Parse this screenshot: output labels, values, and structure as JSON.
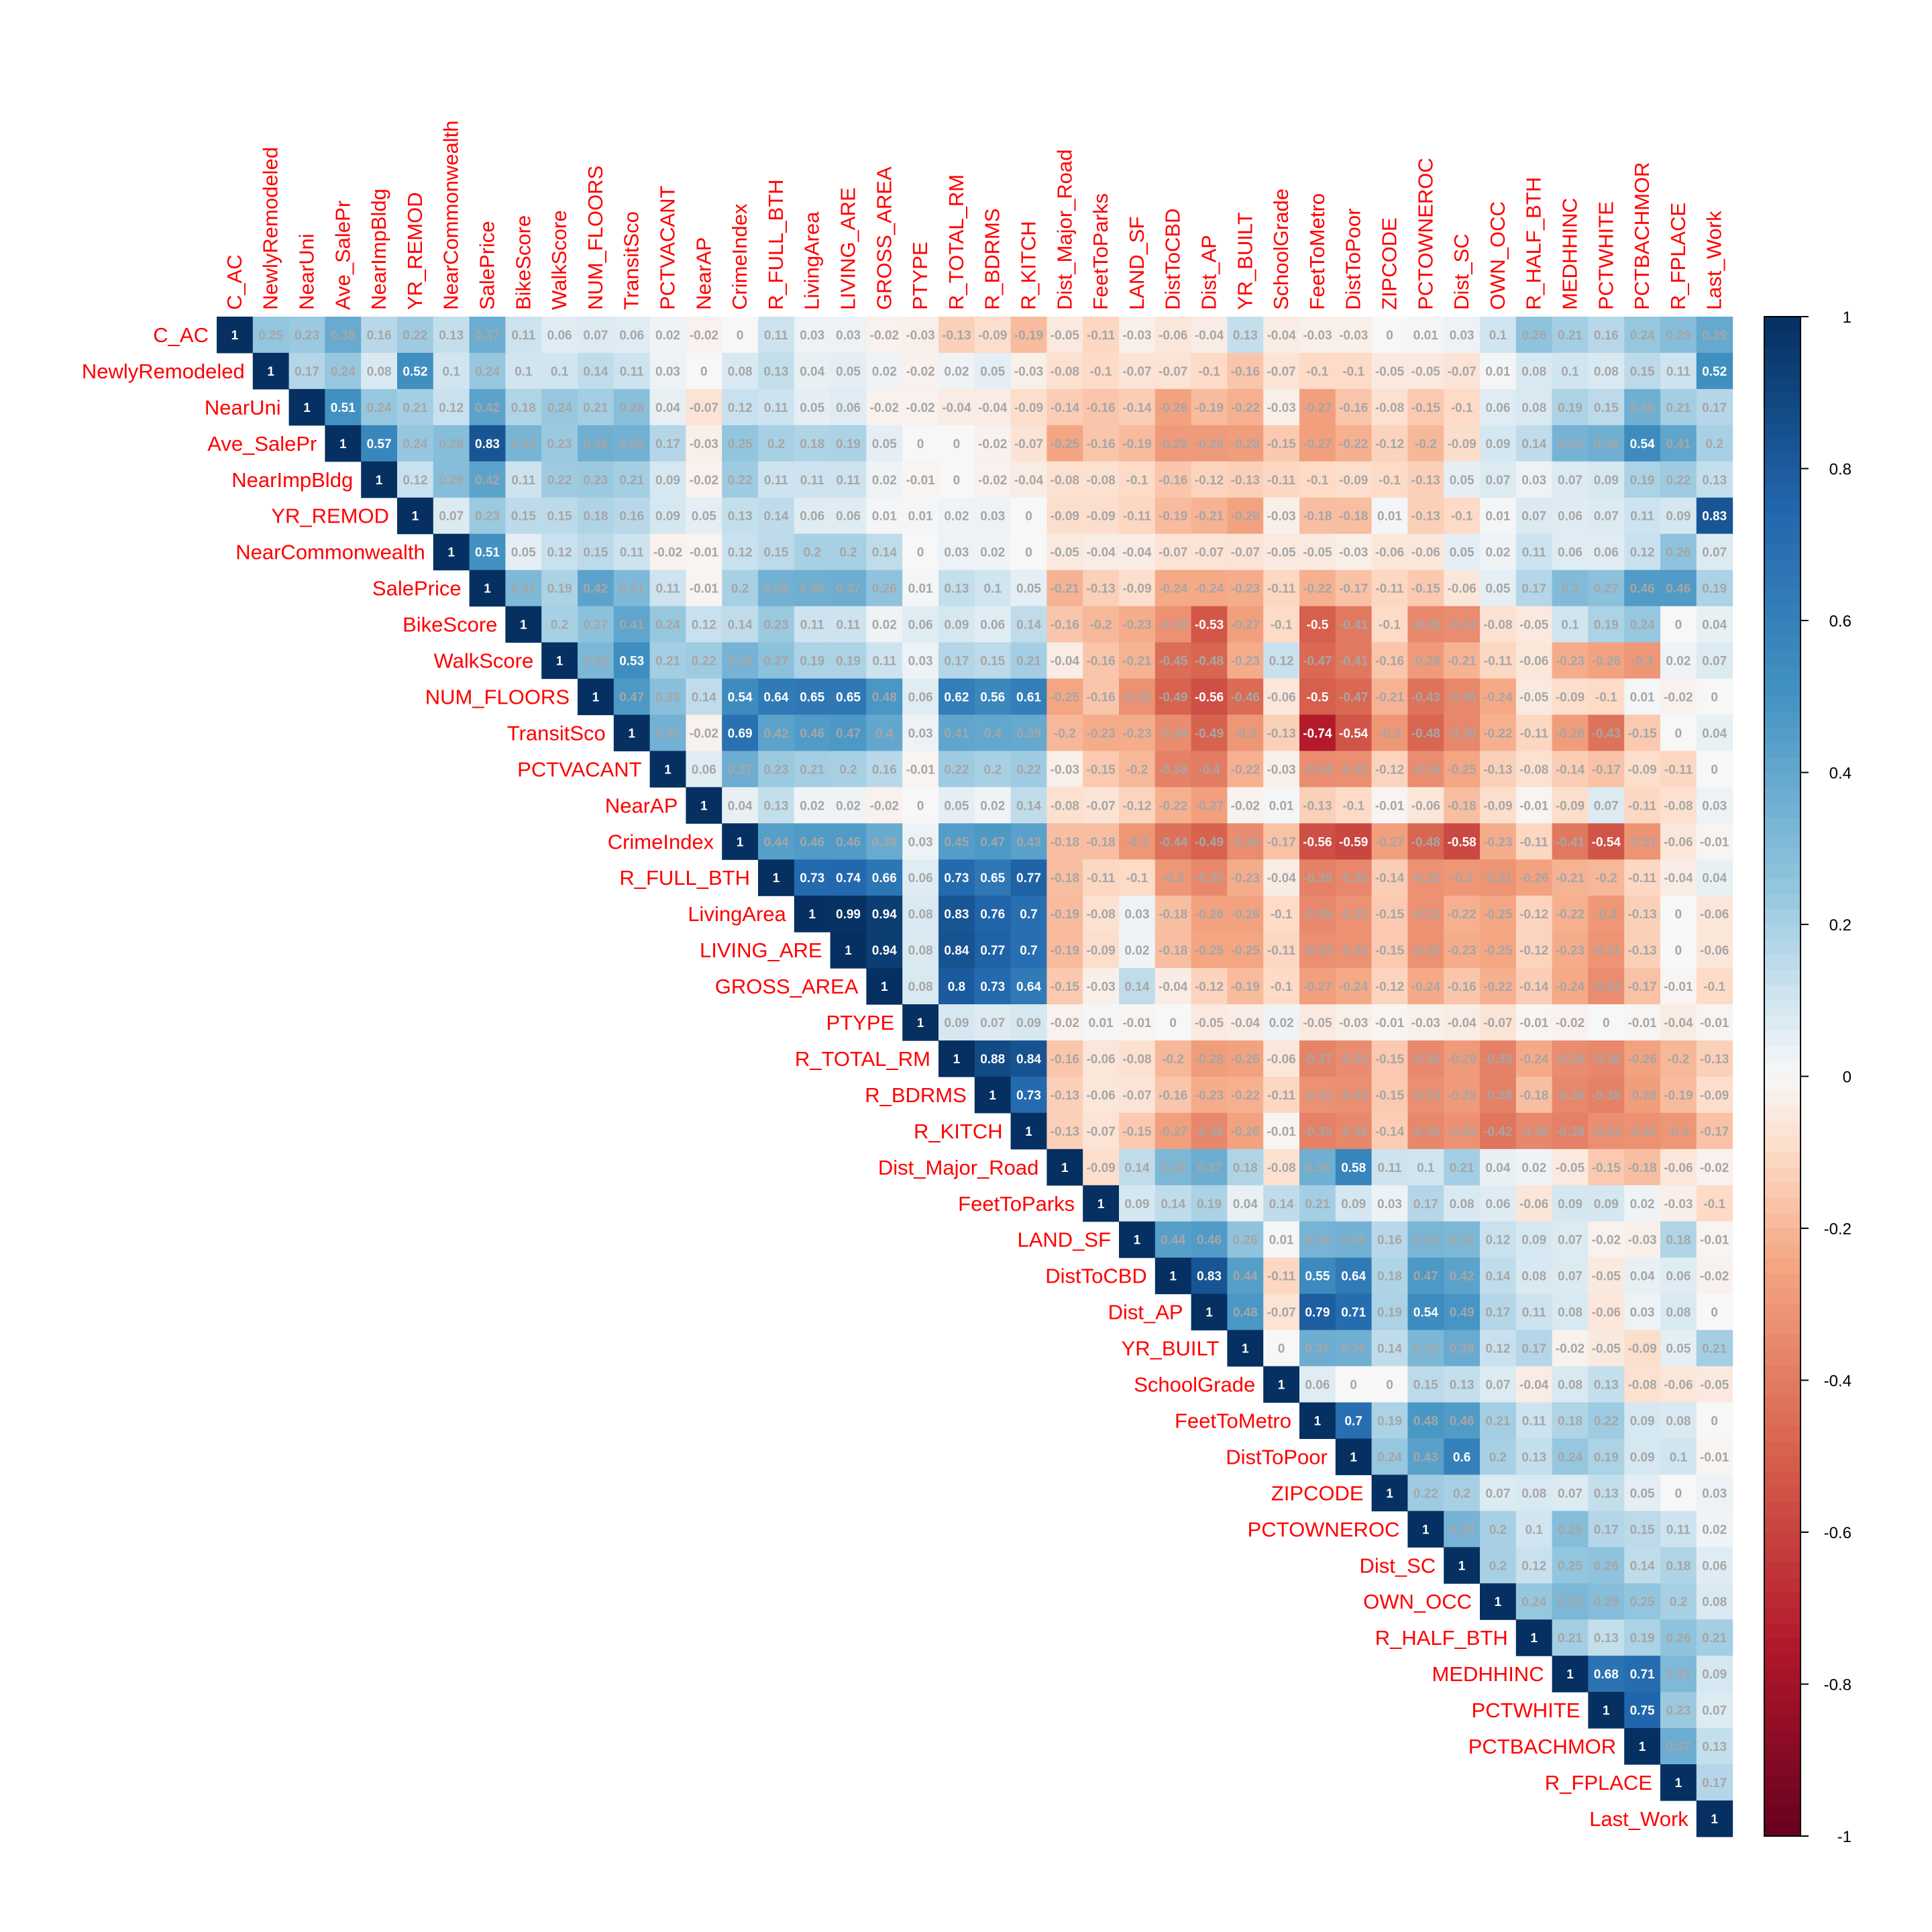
{
  "chart_data": {
    "type": "heatmap",
    "layout": "upper-triangle",
    "variables": [
      "C_AC",
      "NewlyRemodeled",
      "NearUni",
      "Ave_SalePr",
      "NearImpBldg",
      "YR_REMOD",
      "NearCommonwealth",
      "SalePrice",
      "BikeScore",
      "WalkScore",
      "NUM_FLOORS",
      "TransitSco",
      "PCTVACANT",
      "NearAP",
      "CrimeIndex",
      "R_FULL_BTH",
      "LivingArea",
      "LIVING_ARE",
      "GROSS_AREA",
      "PTYPE",
      "R_TOTAL_RM",
      "R_BDRMS",
      "R_KITCH",
      "Dist_Major_Road",
      "FeetToParks",
      "LAND_SF",
      "DistToCBD",
      "Dist_AP",
      "YR_BUILT",
      "SchoolGrade",
      "FeetToMetro",
      "DistToPoor",
      "ZIPCODE",
      "PCTOWNEROC",
      "Dist_SC",
      "OWN_OCC",
      "R_HALF_BTH",
      "MEDHHINC",
      "PCTWHITE",
      "PCTBACHMOR",
      "R_FPLACE",
      "Last_Work"
    ],
    "rows": [
      [
        "1",
        "0.25",
        "0.23",
        "0.38",
        "0.16",
        "0.22",
        "0.13",
        "0.37",
        "0.11",
        "0.06",
        "0.07",
        "0.06",
        "0.02",
        "-0.02",
        "0",
        "0.11",
        "0.03",
        "0.03",
        "-0.02",
        "-0.03",
        "-0.13",
        "-0.09",
        "-0.19",
        "-0.05",
        "-0.11",
        "-0.03",
        "-0.06",
        "-0.04",
        "0.13",
        "-0.04",
        "-0.03",
        "-0.03",
        "0",
        "0.01",
        "0.03",
        "0.1",
        "0.26",
        "0.21",
        "0.16",
        "0.24",
        "0.29",
        "0.39"
      ],
      [
        "1",
        "0.17",
        "0.24",
        "0.08",
        "0.52",
        "0.1",
        "0.24",
        "0.1",
        "0.1",
        "0.14",
        "0.11",
        "0.03",
        "0",
        "0.08",
        "0.13",
        "0.04",
        "0.05",
        "0.02",
        "-0.02",
        "0.02",
        "0.05",
        "-0.03",
        "-0.08",
        "-0.1",
        "-0.07",
        "-0.07",
        "-0.1",
        "-0.16",
        "-0.07",
        "-0.1",
        "-0.1",
        "-0.05",
        "-0.05",
        "-0.07",
        "0.01",
        "0.08",
        "0.1",
        "0.08",
        "0.15",
        "0.11",
        "0.52"
      ],
      [
        "1",
        "0.51",
        "0.24",
        "0.21",
        "0.12",
        "0.42",
        "0.18",
        "0.24",
        "0.21",
        "0.28",
        "0.04",
        "-0.07",
        "0.12",
        "0.11",
        "0.05",
        "0.06",
        "-0.02",
        "-0.02",
        "-0.04",
        "-0.04",
        "-0.09",
        "-0.14",
        "-0.16",
        "-0.14",
        "-0.26",
        "-0.19",
        "-0.22",
        "-0.03",
        "-0.27",
        "-0.16",
        "-0.08",
        "-0.15",
        "-0.1",
        "0.06",
        "0.08",
        "0.19",
        "0.15",
        "0.36",
        "0.21",
        "0.17"
      ],
      [
        "1",
        "0.57",
        "0.24",
        "0.29",
        "0.83",
        "0.33",
        "0.23",
        "0.36",
        "0.35",
        "0.17",
        "-0.03",
        "0.25",
        "0.2",
        "0.18",
        "0.19",
        "0.05",
        "0",
        "0",
        "-0.02",
        "-0.07",
        "-0.25",
        "-0.16",
        "-0.19",
        "-0.29",
        "-0.29",
        "-0.28",
        "-0.15",
        "-0.27",
        "-0.22",
        "-0.12",
        "-0.2",
        "-0.09",
        "0.09",
        "0.14",
        "0.34",
        "0.36",
        "0.54",
        "0.41",
        "0.2"
      ],
      [
        "1",
        "0.12",
        "0.29",
        "0.42",
        "0.11",
        "0.22",
        "0.23",
        "0.21",
        "0.09",
        "-0.02",
        "0.22",
        "0.11",
        "0.11",
        "0.11",
        "0.02",
        "-0.01",
        "0",
        "-0.02",
        "-0.04",
        "-0.08",
        "-0.08",
        "-0.1",
        "-0.16",
        "-0.12",
        "-0.13",
        "-0.11",
        "-0.1",
        "-0.09",
        "-0.1",
        "-0.13",
        "0.05",
        "0.07",
        "0.03",
        "0.07",
        "0.09",
        "0.19",
        "0.22",
        "0.13"
      ],
      [
        "1",
        "0.07",
        "0.23",
        "0.15",
        "0.15",
        "0.18",
        "0.16",
        "0.09",
        "0.05",
        "0.13",
        "0.14",
        "0.06",
        "0.06",
        "0.01",
        "0.01",
        "0.02",
        "0.03",
        "0",
        "-0.09",
        "-0.09",
        "-0.11",
        "-0.19",
        "-0.21",
        "-0.26",
        "-0.03",
        "-0.18",
        "-0.18",
        "0.01",
        "-0.13",
        "-0.1",
        "0.01",
        "0.07",
        "0.06",
        "0.07",
        "0.11",
        "0.09",
        "0.83"
      ],
      [
        "1",
        "0.51",
        "0.05",
        "0.12",
        "0.15",
        "0.11",
        "-0.02",
        "-0.01",
        "0.12",
        "0.15",
        "0.2",
        "0.2",
        "0.14",
        "0",
        "0.03",
        "0.02",
        "0",
        "-0.05",
        "-0.04",
        "-0.04",
        "-0.07",
        "-0.07",
        "-0.07",
        "-0.05",
        "-0.05",
        "-0.03",
        "-0.06",
        "-0.06",
        "0.05",
        "0.02",
        "0.11",
        "0.06",
        "0.06",
        "0.12",
        "0.26",
        "0.07"
      ],
      [
        "1",
        "0.31",
        "0.19",
        "0.42",
        "0.31",
        "0.11",
        "-0.01",
        "0.2",
        "0.35",
        "0.36",
        "0.37",
        "0.26",
        "0.01",
        "0.13",
        "0.1",
        "0.05",
        "-0.21",
        "-0.13",
        "-0.09",
        "-0.24",
        "-0.24",
        "-0.23",
        "-0.11",
        "-0.22",
        "-0.17",
        "-0.11",
        "-0.15",
        "-0.06",
        "0.05",
        "0.17",
        "0.3",
        "0.27",
        "0.46",
        "0.46",
        "0.19"
      ],
      [
        "1",
        "0.2",
        "0.27",
        "0.41",
        "0.24",
        "0.12",
        "0.14",
        "0.23",
        "0.11",
        "0.11",
        "0.02",
        "0.06",
        "0.09",
        "0.06",
        "0.14",
        "-0.16",
        "-0.2",
        "-0.23",
        "-0.32",
        "-0.53",
        "-0.27",
        "-0.1",
        "-0.5",
        "-0.41",
        "-0.1",
        "-0.35",
        "-0.34",
        "-0.08",
        "-0.05",
        "0.1",
        "0.19",
        "0.24",
        "0",
        "0.04"
      ],
      [
        "1",
        "0.32",
        "0.53",
        "0.21",
        "0.22",
        "0.34",
        "0.27",
        "0.19",
        "0.19",
        "0.11",
        "0.03",
        "0.17",
        "0.15",
        "0.21",
        "-0.04",
        "-0.16",
        "-0.21",
        "-0.45",
        "-0.48",
        "-0.23",
        "0.12",
        "-0.47",
        "-0.41",
        "-0.16",
        "-0.29",
        "-0.21",
        "-0.11",
        "-0.06",
        "-0.23",
        "-0.26",
        "-0.3",
        "0.02",
        "0.07"
      ],
      [
        "1",
        "0.47",
        "0.28",
        "0.14",
        "0.54",
        "0.64",
        "0.65",
        "0.65",
        "0.48",
        "0.06",
        "0.62",
        "0.56",
        "0.61",
        "-0.25",
        "-0.16",
        "-0.32",
        "-0.49",
        "-0.56",
        "-0.46",
        "-0.06",
        "-0.5",
        "-0.47",
        "-0.21",
        "-0.43",
        "-0.36",
        "-0.24",
        "-0.05",
        "-0.09",
        "-0.1",
        "0.01",
        "-0.02",
        "0"
      ],
      [
        "1",
        "0.35",
        "-0.02",
        "0.69",
        "0.42",
        "0.46",
        "0.47",
        "0.4",
        "0.03",
        "0.41",
        "0.4",
        "0.39",
        "-0.2",
        "-0.23",
        "-0.23",
        "-0.34",
        "-0.49",
        "-0.3",
        "-0.13",
        "-0.74",
        "-0.54",
        "-0.3",
        "-0.48",
        "-0.36",
        "-0.22",
        "-0.11",
        "-0.28",
        "-0.43",
        "-0.15",
        "0",
        "0.04"
      ],
      [
        "1",
        "0.06",
        "0.37",
        "0.23",
        "0.21",
        "0.2",
        "0.16",
        "-0.01",
        "0.22",
        "0.2",
        "0.22",
        "-0.03",
        "-0.15",
        "-0.2",
        "-0.38",
        "-0.4",
        "-0.22",
        "-0.03",
        "-0.34",
        "-0.33",
        "-0.12",
        "-0.34",
        "-0.25",
        "-0.13",
        "-0.08",
        "-0.14",
        "-0.17",
        "-0.09",
        "-0.11",
        "0"
      ],
      [
        "1",
        "0.04",
        "0.13",
        "0.02",
        "0.02",
        "-0.02",
        "0",
        "0.05",
        "0.02",
        "0.14",
        "-0.08",
        "-0.07",
        "-0.12",
        "-0.22",
        "-0.27",
        "-0.02",
        "0.01",
        "-0.13",
        "-0.1",
        "-0.01",
        "-0.06",
        "-0.18",
        "-0.09",
        "-0.01",
        "-0.09",
        "0.07",
        "-0.11",
        "-0.08",
        "0.03"
      ],
      [
        "1",
        "0.44",
        "0.46",
        "0.46",
        "0.38",
        "0.03",
        "0.45",
        "0.47",
        "0.43",
        "-0.18",
        "-0.18",
        "-0.3",
        "-0.44",
        "-0.49",
        "-0.34",
        "-0.17",
        "-0.56",
        "-0.59",
        "-0.27",
        "-0.48",
        "-0.58",
        "-0.23",
        "-0.11",
        "-0.41",
        "-0.54",
        "-0.31",
        "-0.06",
        "-0.01"
      ],
      [
        "1",
        "0.73",
        "0.74",
        "0.66",
        "0.06",
        "0.73",
        "0.65",
        "0.77",
        "-0.18",
        "-0.11",
        "-0.1",
        "-0.3",
        "-0.35",
        "-0.23",
        "-0.04",
        "-0.38",
        "-0.36",
        "-0.14",
        "-0.32",
        "-0.3",
        "-0.31",
        "-0.26",
        "-0.21",
        "-0.2",
        "-0.11",
        "-0.04",
        "0.04"
      ],
      [
        "1",
        "0.99",
        "0.94",
        "0.08",
        "0.83",
        "0.76",
        "0.7",
        "-0.19",
        "-0.08",
        "0.03",
        "-0.18",
        "-0.26",
        "-0.26",
        "-0.1",
        "-0.35",
        "-0.32",
        "-0.15",
        "-0.32",
        "-0.22",
        "-0.25",
        "-0.12",
        "-0.22",
        "-0.3",
        "-0.13",
        "0",
        "-0.06"
      ],
      [
        "1",
        "0.94",
        "0.08",
        "0.84",
        "0.77",
        "0.7",
        "-0.19",
        "-0.09",
        "0.02",
        "-0.18",
        "-0.25",
        "-0.25",
        "-0.11",
        "-0.33",
        "-0.32",
        "-0.15",
        "-0.32",
        "-0.23",
        "-0.25",
        "-0.12",
        "-0.23",
        "-0.31",
        "-0.13",
        "0",
        "-0.06"
      ],
      [
        "1",
        "0.08",
        "0.8",
        "0.73",
        "0.64",
        "-0.15",
        "-0.03",
        "0.14",
        "-0.04",
        "-0.12",
        "-0.19",
        "-0.1",
        "-0.27",
        "-0.24",
        "-0.12",
        "-0.24",
        "-0.16",
        "-0.22",
        "-0.14",
        "-0.24",
        "-0.34",
        "-0.17",
        "-0.01",
        "-0.1"
      ],
      [
        "1",
        "0.09",
        "0.07",
        "0.09",
        "-0.02",
        "0.01",
        "-0.01",
        "0",
        "-0.05",
        "-0.04",
        "0.02",
        "-0.05",
        "-0.03",
        "-0.01",
        "-0.03",
        "-0.04",
        "-0.07",
        "-0.01",
        "-0.02",
        "0",
        "-0.01",
        "-0.04",
        "-0.01"
      ],
      [
        "1",
        "0.88",
        "0.84",
        "-0.16",
        "-0.06",
        "-0.08",
        "-0.2",
        "-0.28",
        "-0.26",
        "-0.06",
        "-0.37",
        "-0.34",
        "-0.15",
        "-0.35",
        "-0.29",
        "-0.38",
        "-0.24",
        "-0.34",
        "-0.36",
        "-0.26",
        "-0.2",
        "-0.13"
      ],
      [
        "1",
        "0.73",
        "-0.13",
        "-0.06",
        "-0.07",
        "-0.16",
        "-0.23",
        "-0.22",
        "-0.11",
        "-0.32",
        "-0.33",
        "-0.15",
        "-0.33",
        "-0.29",
        "-0.38",
        "-0.18",
        "-0.36",
        "-0.38",
        "-0.28",
        "-0.19",
        "-0.09"
      ],
      [
        "1",
        "-0.13",
        "-0.07",
        "-0.15",
        "-0.27",
        "-0.36",
        "-0.26",
        "-0.01",
        "-0.38",
        "-0.36",
        "-0.14",
        "-0.36",
        "-0.32",
        "-0.42",
        "-0.36",
        "-0.38",
        "-0.33",
        "-0.32",
        "-0.3",
        "-0.17"
      ],
      [
        "1",
        "-0.09",
        "0.14",
        "0.32",
        "0.37",
        "0.18",
        "-0.08",
        "0.36",
        "0.58",
        "0.11",
        "0.1",
        "0.21",
        "0.04",
        "0.02",
        "-0.05",
        "-0.15",
        "-0.18",
        "-0.06",
        "-0.02"
      ],
      [
        "1",
        "0.09",
        "0.14",
        "0.19",
        "0.04",
        "0.14",
        "0.21",
        "0.09",
        "0.03",
        "0.17",
        "0.08",
        "0.06",
        "-0.06",
        "0.09",
        "0.09",
        "0.02",
        "-0.03",
        "-0.1"
      ],
      [
        "1",
        "0.44",
        "0.46",
        "0.26",
        "0.01",
        "0.34",
        "0.35",
        "0.16",
        "0.33",
        "0.32",
        "0.12",
        "0.09",
        "0.07",
        "-0.02",
        "-0.03",
        "0.18",
        "-0.01"
      ],
      [
        "1",
        "0.83",
        "0.44",
        "-0.11",
        "0.55",
        "0.64",
        "0.18",
        "0.47",
        "0.42",
        "0.14",
        "0.08",
        "0.07",
        "-0.05",
        "0.04",
        "0.06",
        "-0.02"
      ],
      [
        "1",
        "0.48",
        "-0.07",
        "0.79",
        "0.71",
        "0.19",
        "0.54",
        "0.49",
        "0.17",
        "0.11",
        "0.08",
        "-0.06",
        "0.03",
        "0.08",
        "0"
      ],
      [
        "1",
        "0",
        "0.37",
        "0.36",
        "0.14",
        "0.32",
        "0.38",
        "0.12",
        "0.17",
        "-0.02",
        "-0.05",
        "-0.09",
        "0.05",
        "0.21"
      ],
      [
        "1",
        "0.06",
        "0",
        "0",
        "0.15",
        "0.13",
        "0.07",
        "-0.04",
        "0.08",
        "0.13",
        "-0.08",
        "-0.06",
        "-0.05"
      ],
      [
        "1",
        "0.7",
        "0.19",
        "0.48",
        "0.46",
        "0.21",
        "0.11",
        "0.18",
        "0.22",
        "0.09",
        "0.08",
        "0"
      ],
      [
        "1",
        "0.24",
        "0.43",
        "0.6",
        "0.2",
        "0.13",
        "0.24",
        "0.19",
        "0.09",
        "0.1",
        "-0.01"
      ],
      [
        "1",
        "0.22",
        "0.2",
        "0.07",
        "0.08",
        "0.07",
        "0.13",
        "0.05",
        "0",
        "0.03"
      ],
      [
        "1",
        "0.34",
        "0.2",
        "0.1",
        "0.29",
        "0.17",
        "0.15",
        "0.11",
        "0.02"
      ],
      [
        "1",
        "0.2",
        "0.12",
        "0.25",
        "0.26",
        "0.14",
        "0.18",
        "0.06"
      ],
      [
        "1",
        "0.24",
        "0.32",
        "0.29",
        "0.25",
        "0.2",
        "0.08"
      ],
      [
        "1",
        "0.21",
        "0.13",
        "0.19",
        "0.26",
        "0.21"
      ],
      [
        "1",
        "0.68",
        "0.71",
        "0.31",
        "0.09"
      ],
      [
        "1",
        "0.75",
        "0.23",
        "0.07"
      ],
      [
        "1",
        "0.37",
        "0.13"
      ],
      [
        "1",
        "0.17"
      ],
      [
        "1"
      ]
    ],
    "colorbar": {
      "ticks": [
        "1",
        "0.8",
        "0.6",
        "0.4",
        "0.2",
        "0",
        "-0.2",
        "-0.4",
        "-0.6",
        "-0.8",
        "-1"
      ],
      "range": [
        -1,
        1
      ]
    },
    "colors": {
      "negative_end": "#67001f",
      "neutral": "#f7f7f7",
      "positive_end": "#053061",
      "label_color": "#ff0000"
    }
  }
}
